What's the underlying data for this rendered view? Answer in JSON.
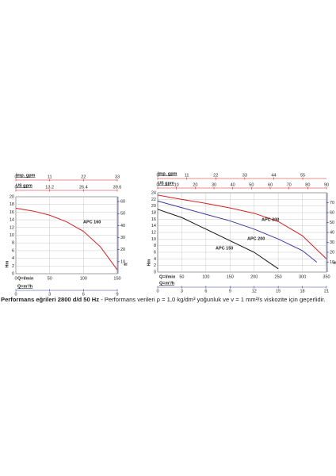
{
  "chart_data": [
    {
      "type": "line",
      "xlabel": "Q=l/min",
      "ylabel": "Hm",
      "y2label": "ft",
      "xlim": [
        0,
        150
      ],
      "xticks": [
        0,
        50,
        100,
        150
      ],
      "ylim": [
        0,
        20
      ],
      "yticks": [
        0,
        2,
        4,
        6,
        8,
        10,
        12,
        14,
        16,
        18,
        20
      ],
      "y2lim": [
        0,
        64
      ],
      "y2ticks": [
        10,
        20,
        30,
        40,
        50,
        60
      ],
      "y2color": "#3a3aa0",
      "grid": true,
      "top_axes": [
        {
          "label": "Imp. gpm",
          "color": "#d62020",
          "xlim": [
            0,
            33
          ],
          "ticks": [
            0,
            11,
            22,
            33
          ]
        },
        {
          "label": "US gpm",
          "color": "#d62020",
          "xlim": [
            0,
            39.6
          ],
          "ticks": [
            0,
            13.2,
            26.4,
            39.6
          ]
        }
      ],
      "bottom_axis": {
        "label": "Q=m³/h",
        "color": "#3a3aa0",
        "xlim": [
          0,
          9
        ],
        "ticks": [
          0,
          3,
          6,
          9
        ]
      },
      "series": [
        {
          "name": "APC 160",
          "color": "#d62020",
          "x": [
            0,
            25,
            50,
            75,
            100,
            125,
            150
          ],
          "values": [
            17,
            16.3,
            15.2,
            13.5,
            11,
            7,
            1
          ]
        }
      ]
    },
    {
      "type": "line",
      "xlabel": "Q=l/min",
      "ylabel": "Hm",
      "y2label": "ft",
      "xlim": [
        0,
        350
      ],
      "xticks": [
        50,
        100,
        150,
        200,
        250,
        300,
        350
      ],
      "ylim": [
        0,
        24
      ],
      "yticks": [
        0,
        2,
        4,
        6,
        8,
        10,
        12,
        14,
        16,
        18,
        20,
        22,
        24
      ],
      "y2lim": [
        0,
        80
      ],
      "y2ticks": [
        10,
        20,
        30,
        40,
        50,
        60,
        70
      ],
      "y2color": "#3a3aa0",
      "grid": true,
      "top_axes": [
        {
          "label": "Imp. gpm",
          "color": "#d62020",
          "xlim": [
            0,
            64
          ],
          "ticks": [
            0,
            11,
            22,
            33,
            44,
            55
          ]
        },
        {
          "label": "US gpm",
          "color": "#d62020",
          "xlim": [
            0,
            90
          ],
          "ticks": [
            0,
            10,
            20,
            30,
            40,
            50,
            60,
            70,
            80,
            90
          ]
        }
      ],
      "bottom_axis": {
        "label": "Q=m³/h",
        "color": "#3a3aa0",
        "xlim": [
          0,
          21
        ],
        "ticks": [
          0,
          3,
          6,
          9,
          12,
          15,
          18,
          21
        ]
      },
      "series": [
        {
          "name": "APC 300",
          "color": "#d62020",
          "x": [
            0,
            50,
            100,
            150,
            200,
            250,
            300,
            350
          ],
          "values": [
            23.3,
            22,
            20.8,
            19.4,
            17.8,
            15.3,
            11,
            4
          ]
        },
        {
          "name": "APC 200",
          "color": "#3a3aa0",
          "x": [
            0,
            50,
            100,
            150,
            200,
            250,
            300,
            330
          ],
          "values": [
            21.5,
            19.5,
            17.5,
            15.5,
            13,
            10,
            6.5,
            3
          ]
        },
        {
          "name": "APC 150",
          "color": "#111111",
          "x": [
            0,
            50,
            100,
            150,
            200,
            250
          ],
          "values": [
            19,
            16.5,
            13,
            9.5,
            6,
            1
          ]
        }
      ]
    }
  ],
  "caption": {
    "bold": "Performans eğrileri 2800 d/d 50 Hz",
    "text": "- Performans verileri ρ = 1,0 kg/dm³ yoğunluk ve v = 1 mm²/s viskozite için geçerlidir."
  }
}
